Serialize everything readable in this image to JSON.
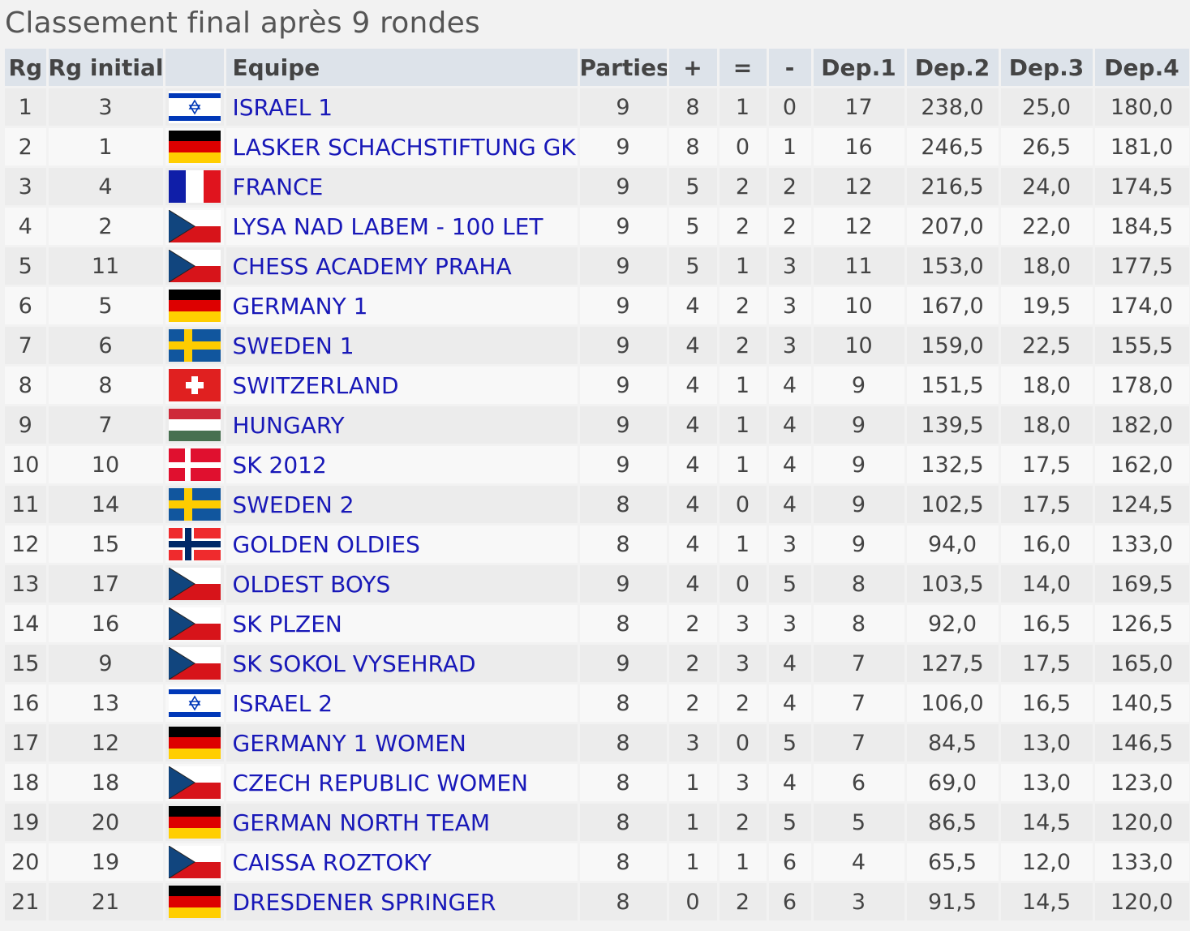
{
  "title": "Classement final après 9 rondes",
  "columns": {
    "rank": "Rg",
    "initial_rank": "Rg initial",
    "flag": "",
    "team": "Equipe",
    "games": "Parties",
    "wins": "+",
    "draws": "=",
    "losses": "-",
    "tb1": "Dep.1",
    "tb2": "Dep.2",
    "tb3": "Dep.3",
    "tb4": "Dep.4"
  },
  "colors": {
    "header_bg": "#dde3ea",
    "row_odd_bg": "#ececec",
    "row_even_bg": "#f8f8f8",
    "link": "#1818b8"
  },
  "rows": [
    {
      "rank": "1",
      "initial_rank": "3",
      "flag": "israel-flag-icon",
      "team": "ISRAEL 1",
      "games": "9",
      "wins": "8",
      "draws": "1",
      "losses": "0",
      "tb1": "17",
      "tb2": "238,0",
      "tb3": "25,0",
      "tb4": "180,0"
    },
    {
      "rank": "2",
      "initial_rank": "1",
      "flag": "germany-flag-icon",
      "team": "LASKER SCHACHSTIFTUNG GK",
      "games": "9",
      "wins": "8",
      "draws": "0",
      "losses": "1",
      "tb1": "16",
      "tb2": "246,5",
      "tb3": "26,5",
      "tb4": "181,0"
    },
    {
      "rank": "3",
      "initial_rank": "4",
      "flag": "france-flag-icon",
      "team": "FRANCE",
      "games": "9",
      "wins": "5",
      "draws": "2",
      "losses": "2",
      "tb1": "12",
      "tb2": "216,5",
      "tb3": "24,0",
      "tb4": "174,5"
    },
    {
      "rank": "4",
      "initial_rank": "2",
      "flag": "czech-flag-icon",
      "team": "LYSA NAD LABEM - 100 LET",
      "games": "9",
      "wins": "5",
      "draws": "2",
      "losses": "2",
      "tb1": "12",
      "tb2": "207,0",
      "tb3": "22,0",
      "tb4": "184,5"
    },
    {
      "rank": "5",
      "initial_rank": "11",
      "flag": "czech-flag-icon",
      "team": "CHESS ACADEMY PRAHA",
      "games": "9",
      "wins": "5",
      "draws": "1",
      "losses": "3",
      "tb1": "11",
      "tb2": "153,0",
      "tb3": "18,0",
      "tb4": "177,5"
    },
    {
      "rank": "6",
      "initial_rank": "5",
      "flag": "germany-flag-icon",
      "team": "GERMANY 1",
      "games": "9",
      "wins": "4",
      "draws": "2",
      "losses": "3",
      "tb1": "10",
      "tb2": "167,0",
      "tb3": "19,5",
      "tb4": "174,0"
    },
    {
      "rank": "7",
      "initial_rank": "6",
      "flag": "sweden-flag-icon",
      "team": "SWEDEN 1",
      "games": "9",
      "wins": "4",
      "draws": "2",
      "losses": "3",
      "tb1": "10",
      "tb2": "159,0",
      "tb3": "22,5",
      "tb4": "155,5"
    },
    {
      "rank": "8",
      "initial_rank": "8",
      "flag": "switzerland-flag-icon",
      "team": "SWITZERLAND",
      "games": "9",
      "wins": "4",
      "draws": "1",
      "losses": "4",
      "tb1": "9",
      "tb2": "151,5",
      "tb3": "18,0",
      "tb4": "178,0"
    },
    {
      "rank": "9",
      "initial_rank": "7",
      "flag": "hungary-flag-icon",
      "team": "HUNGARY",
      "games": "9",
      "wins": "4",
      "draws": "1",
      "losses": "4",
      "tb1": "9",
      "tb2": "139,5",
      "tb3": "18,0",
      "tb4": "182,0"
    },
    {
      "rank": "10",
      "initial_rank": "10",
      "flag": "denmark-flag-icon",
      "team": "SK 2012",
      "games": "9",
      "wins": "4",
      "draws": "1",
      "losses": "4",
      "tb1": "9",
      "tb2": "132,5",
      "tb3": "17,5",
      "tb4": "162,0"
    },
    {
      "rank": "11",
      "initial_rank": "14",
      "flag": "sweden-flag-icon",
      "team": "SWEDEN 2",
      "games": "8",
      "wins": "4",
      "draws": "0",
      "losses": "4",
      "tb1": "9",
      "tb2": "102,5",
      "tb3": "17,5",
      "tb4": "124,5"
    },
    {
      "rank": "12",
      "initial_rank": "15",
      "flag": "norway-flag-icon",
      "team": "GOLDEN OLDIES",
      "games": "8",
      "wins": "4",
      "draws": "1",
      "losses": "3",
      "tb1": "9",
      "tb2": "94,0",
      "tb3": "16,0",
      "tb4": "133,0"
    },
    {
      "rank": "13",
      "initial_rank": "17",
      "flag": "czech-flag-icon",
      "team": "OLDEST BOYS",
      "games": "9",
      "wins": "4",
      "draws": "0",
      "losses": "5",
      "tb1": "8",
      "tb2": "103,5",
      "tb3": "14,0",
      "tb4": "169,5"
    },
    {
      "rank": "14",
      "initial_rank": "16",
      "flag": "czech-flag-icon",
      "team": "SK PLZEN",
      "games": "8",
      "wins": "2",
      "draws": "3",
      "losses": "3",
      "tb1": "8",
      "tb2": "92,0",
      "tb3": "16,5",
      "tb4": "126,5"
    },
    {
      "rank": "15",
      "initial_rank": "9",
      "flag": "czech-flag-icon",
      "team": "SK SOKOL VYSEHRAD",
      "games": "9",
      "wins": "2",
      "draws": "3",
      "losses": "4",
      "tb1": "7",
      "tb2": "127,5",
      "tb3": "17,5",
      "tb4": "165,0"
    },
    {
      "rank": "16",
      "initial_rank": "13",
      "flag": "israel-flag-icon",
      "team": "ISRAEL 2",
      "games": "8",
      "wins": "2",
      "draws": "2",
      "losses": "4",
      "tb1": "7",
      "tb2": "106,0",
      "tb3": "16,5",
      "tb4": "140,5"
    },
    {
      "rank": "17",
      "initial_rank": "12",
      "flag": "germany-flag-icon",
      "team": "GERMANY 1 WOMEN",
      "games": "8",
      "wins": "3",
      "draws": "0",
      "losses": "5",
      "tb1": "7",
      "tb2": "84,5",
      "tb3": "13,0",
      "tb4": "146,5"
    },
    {
      "rank": "18",
      "initial_rank": "18",
      "flag": "czech-flag-icon",
      "team": "CZECH REPUBLIC WOMEN",
      "games": "8",
      "wins": "1",
      "draws": "3",
      "losses": "4",
      "tb1": "6",
      "tb2": "69,0",
      "tb3": "13,0",
      "tb4": "123,0"
    },
    {
      "rank": "19",
      "initial_rank": "20",
      "flag": "germany-flag-icon",
      "team": "GERMAN NORTH TEAM",
      "games": "8",
      "wins": "1",
      "draws": "2",
      "losses": "5",
      "tb1": "5",
      "tb2": "86,5",
      "tb3": "14,5",
      "tb4": "120,0"
    },
    {
      "rank": "20",
      "initial_rank": "19",
      "flag": "czech-flag-icon",
      "team": "CAISSA ROZTOKY",
      "games": "8",
      "wins": "1",
      "draws": "1",
      "losses": "6",
      "tb1": "4",
      "tb2": "65,5",
      "tb3": "12,0",
      "tb4": "133,0"
    },
    {
      "rank": "21",
      "initial_rank": "21",
      "flag": "germany-flag-icon",
      "team": "DRESDENER SPRINGER",
      "games": "8",
      "wins": "0",
      "draws": "2",
      "losses": "6",
      "tb1": "3",
      "tb2": "91,5",
      "tb3": "14,5",
      "tb4": "120,0"
    }
  ]
}
